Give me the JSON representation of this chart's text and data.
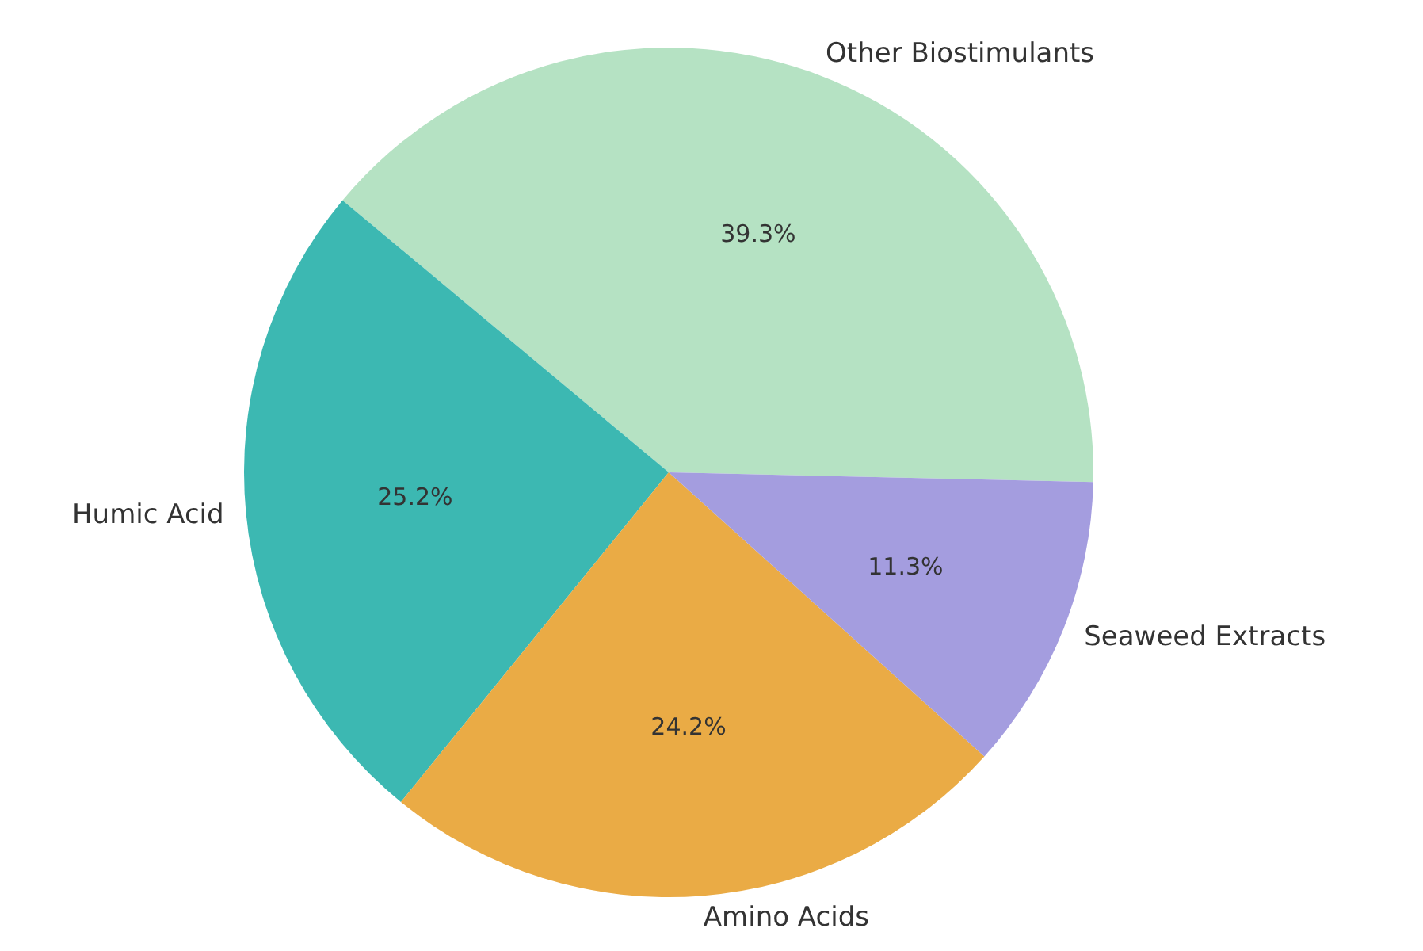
{
  "chart_data": {
    "type": "pie",
    "categories": [
      "Other Biostimulants",
      "Humic Acid",
      "Amino Acids",
      "Seaweed Extracts"
    ],
    "values": [
      39.3,
      25.2,
      24.2,
      11.3
    ],
    "colors": [
      "#b5e2c3",
      "#3cb8b2",
      "#eaab45",
      "#a49ddf"
    ],
    "value_labels": [
      "39.3%",
      "25.2%",
      "24.2%",
      "11.3%"
    ]
  }
}
